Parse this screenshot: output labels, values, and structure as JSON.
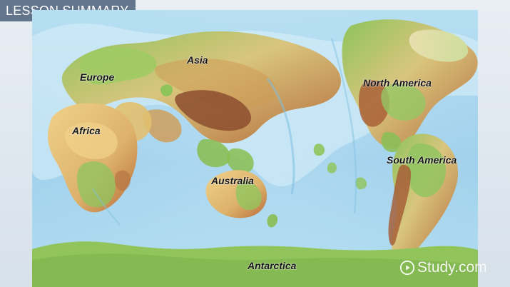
{
  "header": {
    "title": "LESSON SUMMARY"
  },
  "map": {
    "labels": {
      "asia": "Asia",
      "europe": "Europe",
      "africa": "Africa",
      "north_america": "North America",
      "south_america": "South America",
      "australia": "Australia",
      "antarctica": "Antarctica"
    }
  },
  "watermark": {
    "text": "Study.com"
  },
  "colors": {
    "ocean": "#a9d5ee",
    "shallow_water": "#d8eef8",
    "land_green": "#8fc45b",
    "land_yellow": "#e3c77a",
    "land_brown": "#b86d3f",
    "header": "#63758b"
  }
}
